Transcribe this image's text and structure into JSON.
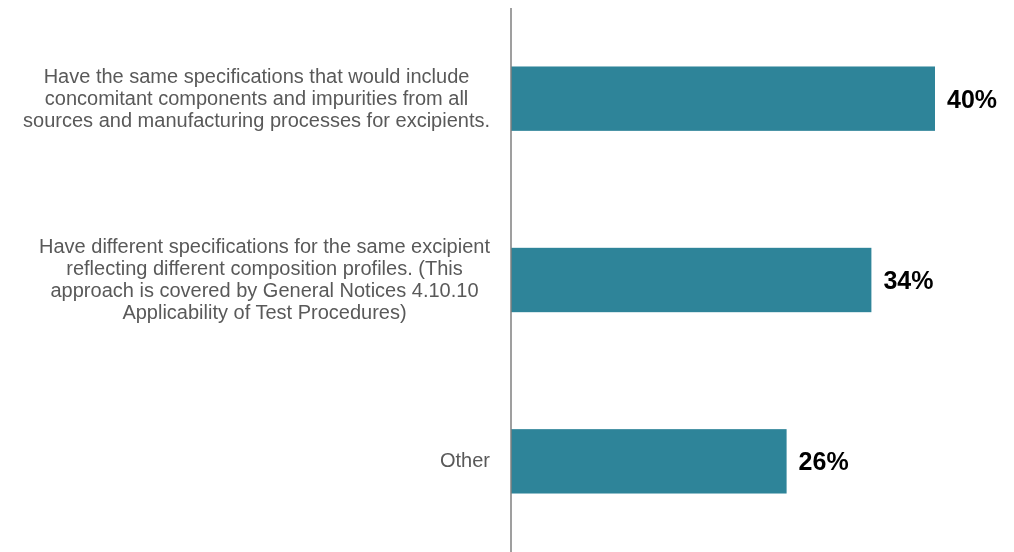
{
  "chart_data": {
    "type": "bar",
    "orientation": "horizontal",
    "data_labels": true,
    "categories": [
      "Have the same specifications that would include concomitant components and impurities from all sources and manufacturing processes for excipients.",
      "Have different specifications for the same excipient reflecting different composition profiles. (This approach is covered by General Notices 4.10.10 Applicability of Test Procedures)",
      "Other"
    ],
    "values": [
      40,
      34,
      26
    ],
    "value_labels": [
      "40%",
      "34%",
      "26%"
    ],
    "color": "#2e8499"
  }
}
